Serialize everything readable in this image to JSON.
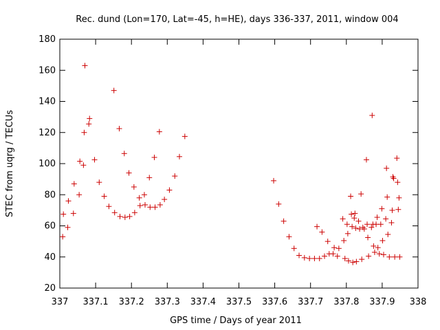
{
  "chart_data": {
    "type": "scatter",
    "title": "Rec. dund (Lon=170, Lat=-45, h=HE), days 336-337, 2011, window 004",
    "xlabel": "GPS time / Days of year 2011",
    "ylabel": "STEC from uqrg / TECUs",
    "xlim": [
      337,
      338
    ],
    "ylim": [
      20,
      180
    ],
    "xticks": [
      "337",
      "337.1",
      "337.2",
      "337.3",
      "337.4",
      "337.5",
      "337.6",
      "337.7",
      "337.8",
      "337.9",
      "338"
    ],
    "yticks": [
      "20",
      "40",
      "60",
      "80",
      "100",
      "120",
      "140",
      "160",
      "180"
    ],
    "grid": false,
    "marker": "+",
    "color": "#cc0000",
    "points": [
      [
        337.008,
        53
      ],
      [
        337.01,
        67.5
      ],
      [
        337.022,
        59
      ],
      [
        337.024,
        76
      ],
      [
        337.038,
        68
      ],
      [
        337.04,
        87
      ],
      [
        337.054,
        80
      ],
      [
        337.056,
        101.5
      ],
      [
        337.066,
        99
      ],
      [
        337.068,
        120
      ],
      [
        337.07,
        163
      ],
      [
        337.081,
        125.5
      ],
      [
        337.083,
        129
      ],
      [
        337.097,
        102.5
      ],
      [
        337.11,
        88
      ],
      [
        337.124,
        79
      ],
      [
        337.137,
        72.5
      ],
      [
        337.151,
        147
      ],
      [
        337.153,
        68.5
      ],
      [
        337.166,
        122.5
      ],
      [
        337.168,
        66
      ],
      [
        337.18,
        106.5
      ],
      [
        337.182,
        65.5
      ],
      [
        337.193,
        94
      ],
      [
        337.195,
        66
      ],
      [
        337.207,
        85
      ],
      [
        337.209,
        68.5
      ],
      [
        337.222,
        78
      ],
      [
        337.224,
        73
      ],
      [
        337.236,
        80
      ],
      [
        337.238,
        73.5
      ],
      [
        337.25,
        91
      ],
      [
        337.252,
        72
      ],
      [
        337.264,
        104
      ],
      [
        337.266,
        72
      ],
      [
        337.278,
        120.5
      ],
      [
        337.28,
        73.5
      ],
      [
        337.292,
        77
      ],
      [
        337.306,
        83
      ],
      [
        337.321,
        92
      ],
      [
        337.334,
        104.5
      ],
      [
        337.349,
        117.5
      ],
      [
        337.597,
        89
      ],
      [
        337.611,
        74
      ],
      [
        337.625,
        63
      ],
      [
        337.64,
        53
      ],
      [
        337.654,
        45.5
      ],
      [
        337.668,
        41
      ],
      [
        337.683,
        39.5
      ],
      [
        337.697,
        39
      ],
      [
        337.711,
        39
      ],
      [
        337.718,
        59.5
      ],
      [
        337.725,
        39
      ],
      [
        337.732,
        56
      ],
      [
        337.739,
        40.5
      ],
      [
        337.748,
        50
      ],
      [
        337.752,
        42
      ],
      [
        337.763,
        42
      ],
      [
        337.766,
        46
      ],
      [
        337.775,
        40.5
      ],
      [
        337.779,
        45.5
      ],
      [
        337.79,
        64.5
      ],
      [
        337.793,
        50.5
      ],
      [
        337.796,
        39
      ],
      [
        337.802,
        61
      ],
      [
        337.804,
        55
      ],
      [
        337.806,
        37.5
      ],
      [
        337.812,
        79
      ],
      [
        337.814,
        67.5
      ],
      [
        337.816,
        59.5
      ],
      [
        337.818,
        36.5
      ],
      [
        337.822,
        65
      ],
      [
        337.824,
        68
      ],
      [
        337.826,
        58.5
      ],
      [
        337.828,
        37
      ],
      [
        337.834,
        63
      ],
      [
        337.837,
        58
      ],
      [
        337.841,
        80.5
      ],
      [
        337.843,
        38.5
      ],
      [
        337.846,
        59
      ],
      [
        337.85,
        58
      ],
      [
        337.856,
        102.5
      ],
      [
        337.858,
        61
      ],
      [
        337.86,
        52.5
      ],
      [
        337.862,
        40.5
      ],
      [
        337.87,
        59
      ],
      [
        337.872,
        131
      ],
      [
        337.874,
        61
      ],
      [
        337.876,
        47
      ],
      [
        337.879,
        43
      ],
      [
        337.883,
        61
      ],
      [
        337.886,
        65.5
      ],
      [
        337.888,
        46
      ],
      [
        337.892,
        42
      ],
      [
        337.896,
        61
      ],
      [
        337.899,
        71
      ],
      [
        337.901,
        50.5
      ],
      [
        337.904,
        41.5
      ],
      [
        337.91,
        64.5
      ],
      [
        337.912,
        97
      ],
      [
        337.914,
        78.5
      ],
      [
        337.916,
        54.5
      ],
      [
        337.92,
        40
      ],
      [
        337.926,
        62
      ],
      [
        337.928,
        70
      ],
      [
        337.93,
        91.5
      ],
      [
        337.932,
        90.5
      ],
      [
        337.935,
        40
      ],
      [
        337.941,
        103.5
      ],
      [
        337.943,
        88
      ],
      [
        337.945,
        70.5
      ],
      [
        337.947,
        78
      ],
      [
        337.949,
        40
      ]
    ]
  }
}
